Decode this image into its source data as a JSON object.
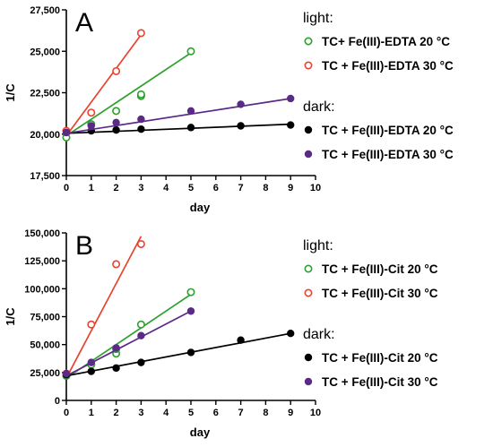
{
  "chart_data": [
    {
      "type": "scatter",
      "panel_label": "A",
      "xlabel": "day",
      "ylabel": "1/C",
      "xlim": [
        0,
        10
      ],
      "ylim": [
        17500,
        27500
      ],
      "x_ticks": [
        "0",
        "1",
        "2",
        "3",
        "4",
        "5",
        "6",
        "7",
        "8",
        "9",
        "10"
      ],
      "y_ticks": [
        "17,500",
        "20,000",
        "22,500",
        "25,000",
        "27,500"
      ],
      "legend_sections": [
        {
          "title": "light:",
          "series_idx": [
            0,
            1
          ]
        },
        {
          "title": "dark:",
          "series_idx": [
            2,
            3
          ]
        }
      ],
      "series": [
        {
          "name": "TC+ Fe(III)-EDTA 20 °C",
          "color": "#2ca02c",
          "marker": "open",
          "x": [
            0,
            1,
            2,
            3,
            3,
            5
          ],
          "y": [
            19800,
            20600,
            21400,
            22300,
            22400,
            25000
          ],
          "fit": [
            [
              0,
              19900
            ],
            [
              5,
              24900
            ]
          ]
        },
        {
          "name": "TC + Fe(III)-EDTA 30 °C",
          "color": "#e8432e",
          "marker": "open",
          "x": [
            0,
            1,
            2,
            3
          ],
          "y": [
            20200,
            21300,
            23800,
            26100
          ],
          "fit": [
            [
              0,
              19900
            ],
            [
              3,
              26000
            ]
          ]
        },
        {
          "name": "TC + Fe(III)-EDTA 20 °C",
          "color": "#000000",
          "marker": "filled",
          "x": [
            0,
            1,
            2,
            3,
            5,
            7,
            9
          ],
          "y": [
            20100,
            20200,
            20250,
            20300,
            20400,
            20500,
            20550
          ],
          "fit": [
            [
              0,
              20050
            ],
            [
              9,
              20600
            ]
          ]
        },
        {
          "name": "TC + Fe(III)-EDTA 30 °C",
          "color": "#5b2a86",
          "marker": "filled",
          "x": [
            0,
            1,
            2,
            3,
            5,
            7,
            9
          ],
          "y": [
            20100,
            20500,
            20700,
            20900,
            21400,
            21800,
            22150
          ],
          "fit": [
            [
              0,
              20050
            ],
            [
              9,
              22150
            ]
          ]
        }
      ]
    },
    {
      "type": "scatter",
      "panel_label": "B",
      "xlabel": "day",
      "ylabel": "1/C",
      "xlim": [
        0,
        10
      ],
      "ylim": [
        0,
        150000
      ],
      "x_ticks": [
        "0",
        "1",
        "2",
        "3",
        "4",
        "5",
        "6",
        "7",
        "8",
        "9",
        "10"
      ],
      "y_ticks": [
        "0",
        "25,000",
        "50,000",
        "75,000",
        "100,000",
        "125,000",
        "150,000"
      ],
      "legend_sections": [
        {
          "title": "light:",
          "series_idx": [
            0,
            1
          ]
        },
        {
          "title": "dark:",
          "series_idx": [
            2,
            3
          ]
        }
      ],
      "series": [
        {
          "name": "TC + Fe(III)-Cit 20 °C",
          "color": "#2ca02c",
          "marker": "open",
          "x": [
            0,
            1,
            2,
            2,
            3,
            5
          ],
          "y": [
            22000,
            32000,
            42000,
            46000,
            68000,
            97000
          ],
          "fit": [
            [
              0,
              20000
            ],
            [
              5,
              95000
            ]
          ]
        },
        {
          "name": "TC + Fe(III)-Cit 30 °C",
          "color": "#e8432e",
          "marker": "open",
          "x": [
            0,
            1,
            2,
            3
          ],
          "y": [
            24000,
            68000,
            122000,
            140000
          ],
          "fit": [
            [
              0,
              20000
            ],
            [
              3,
              147000
            ]
          ]
        },
        {
          "name": "TC + Fe(III)-Cit 20 °C",
          "color": "#000000",
          "marker": "filled",
          "x": [
            0,
            1,
            2,
            3,
            5,
            7,
            9
          ],
          "y": [
            23000,
            26000,
            29000,
            34000,
            43000,
            54000,
            60000
          ],
          "fit": [
            [
              0,
              22000
            ],
            [
              9,
              60000
            ]
          ]
        },
        {
          "name": "TC + Fe(III)-Cit 30 °C",
          "color": "#5b2a86",
          "marker": "filled",
          "x": [
            0,
            1,
            2,
            3,
            5
          ],
          "y": [
            24000,
            34000,
            47000,
            58000,
            80000
          ],
          "fit": [
            [
              0,
              22000
            ],
            [
              5,
              80000
            ]
          ]
        }
      ]
    }
  ]
}
